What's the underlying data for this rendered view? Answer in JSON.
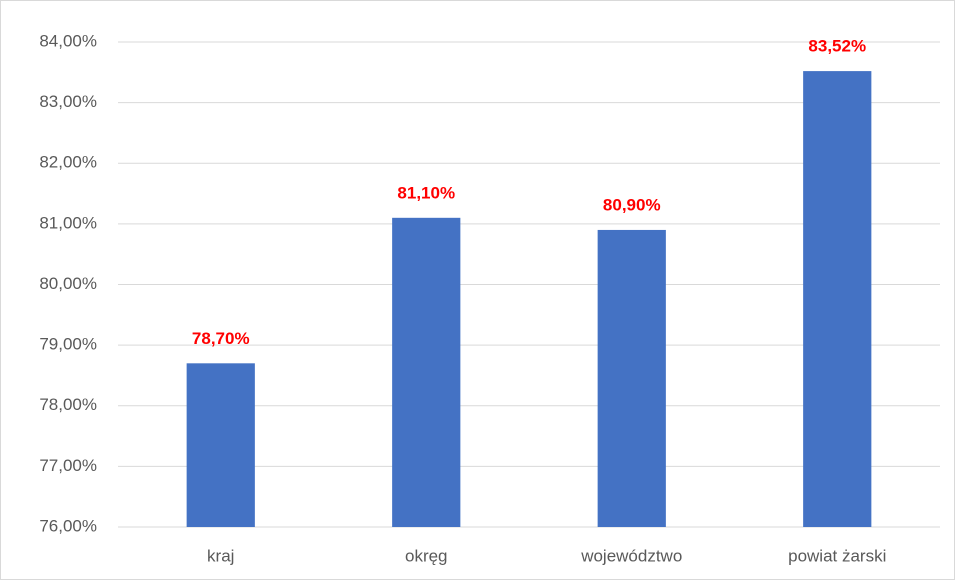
{
  "chart_data": {
    "type": "bar",
    "categories": [
      "kraj",
      "okręg",
      "województwo",
      "powiat żarski"
    ],
    "values": [
      78.7,
      81.1,
      80.9,
      83.52
    ],
    "value_labels": [
      "78,70%",
      "81,10%",
      "80,90%",
      "83,52%"
    ],
    "color": "#4472c4",
    "value_label_color": "#ff0000",
    "ylim": [
      76,
      84
    ],
    "yticks": [
      {
        "value": 76,
        "label": "76,00%"
      },
      {
        "value": 77,
        "label": "77,00%"
      },
      {
        "value": 78,
        "label": "78,00%"
      },
      {
        "value": 79,
        "label": "79,00%"
      },
      {
        "value": 80,
        "label": "80,00%"
      },
      {
        "value": 81,
        "label": "81,00%"
      },
      {
        "value": 82,
        "label": "82,00%"
      },
      {
        "value": 83,
        "label": "83,00%"
      },
      {
        "value": 84,
        "label": "84,00%"
      }
    ],
    "grid": true
  }
}
